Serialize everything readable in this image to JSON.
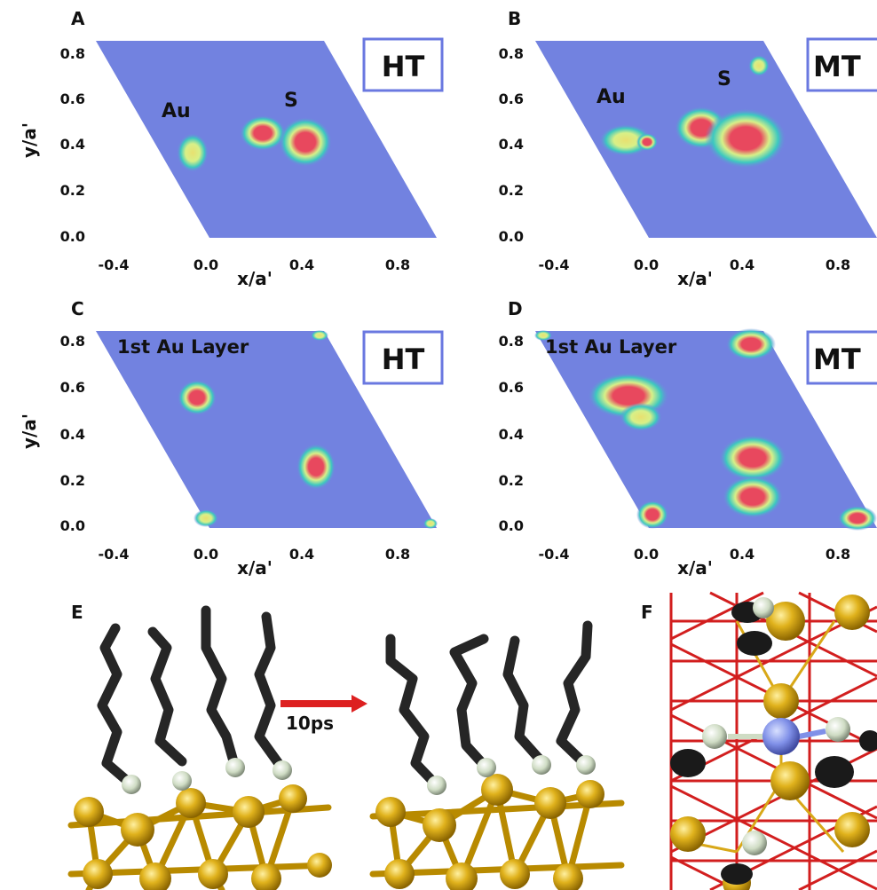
{
  "panels": [
    {
      "letter": "A",
      "mode": "HT",
      "layer_title": "",
      "species": [
        "Au",
        "S"
      ]
    },
    {
      "letter": "B",
      "mode": "MT",
      "layer_title": "",
      "species": [
        "Au",
        "S"
      ]
    },
    {
      "letter": "C",
      "mode": "HT",
      "layer_title": "1st Au Layer",
      "species": []
    },
    {
      "letter": "D",
      "mode": "MT",
      "layer_title": "1st Au Layer",
      "species": []
    }
  ],
  "axes": {
    "xlabel": "x/a'",
    "ylabel": "y/a'",
    "xticks": [
      "-0.4",
      "0.0",
      "0.4",
      "0.8"
    ],
    "yticks": [
      "0.0",
      "0.2",
      "0.4",
      "0.6",
      "0.8"
    ]
  },
  "panel_e": {
    "letter": "E",
    "arrow_label": "10ps"
  },
  "panel_f": {
    "letter": "F"
  },
  "colors": {
    "map_background": "#7282e0",
    "density_low": "#3cc8c0",
    "density_mid": "#d8f088",
    "density_high": "#e8485e",
    "gold_atom": "#e0b21c",
    "sulfur_atom": "#cfdcc4",
    "chain": "#262626",
    "arrow": "#dd2020",
    "lattice_red": "#d21e1e",
    "center_atom": "#8090e8"
  }
}
